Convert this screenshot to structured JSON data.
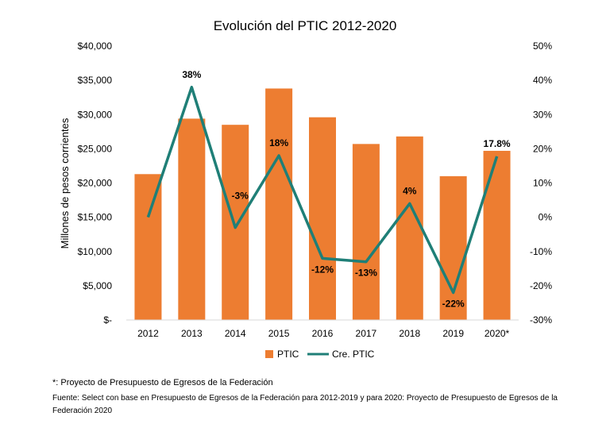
{
  "chart_data": {
    "type": "bar",
    "title": "Evolución del PTIC 2012-2020",
    "categories": [
      "2012",
      "2013",
      "2014",
      "2015",
      "2016",
      "2017",
      "2018",
      "2019",
      "2020*"
    ],
    "series": [
      {
        "name": "PTIC",
        "kind": "bar",
        "axis": "left",
        "values": [
          21300,
          29400,
          28500,
          33800,
          29600,
          25700,
          26800,
          21000,
          24700
        ]
      },
      {
        "name": "Cre. PTIC",
        "kind": "line",
        "axis": "right",
        "values": [
          0,
          38,
          -3,
          18,
          -12,
          -13,
          4,
          -22,
          17.8
        ],
        "labels": [
          "",
          "38%",
          "-3%",
          "18%",
          "-12%",
          "-13%",
          "4%",
          "-22%",
          "17.8%"
        ]
      }
    ],
    "ylabel": "Millones de pesos corrientes",
    "ylim": [
      0,
      40000
    ],
    "y2lim": [
      -30,
      50
    ],
    "left_ticks": [
      {
        "v": 0,
        "t": "$-"
      },
      {
        "v": 5000,
        "t": "$5,000"
      },
      {
        "v": 10000,
        "t": "$10,000"
      },
      {
        "v": 15000,
        "t": "$15,000"
      },
      {
        "v": 20000,
        "t": "$20,000"
      },
      {
        "v": 25000,
        "t": "$25,000"
      },
      {
        "v": 30000,
        "t": "$30,000"
      },
      {
        "v": 35000,
        "t": "$35,000"
      },
      {
        "v": 40000,
        "t": "$40,000"
      }
    ],
    "right_ticks": [
      {
        "v": -30,
        "t": "-30%"
      },
      {
        "v": -20,
        "t": "-20%"
      },
      {
        "v": -10,
        "t": "-10%"
      },
      {
        "v": 0,
        "t": "0%"
      },
      {
        "v": 10,
        "t": "10%"
      },
      {
        "v": 20,
        "t": "20%"
      },
      {
        "v": 30,
        "t": "30%"
      },
      {
        "v": 40,
        "t": "40%"
      },
      {
        "v": 50,
        "t": "50%"
      }
    ],
    "legend": [
      "PTIC",
      "Cre. PTIC"
    ],
    "legend_position": "bottom",
    "grid": false
  },
  "colors": {
    "bar": "#ED7D31",
    "line": "#1F7F77"
  },
  "notes": {
    "project_note": "*: Proyecto de Presupuesto de Egresos de la Federación",
    "source": "Fuente: Select con base en Presupuesto de Egresos de la Federación para 2012-2019 y para 2020: Proyecto de Presupuesto de Egresos de la Federación 2020"
  }
}
